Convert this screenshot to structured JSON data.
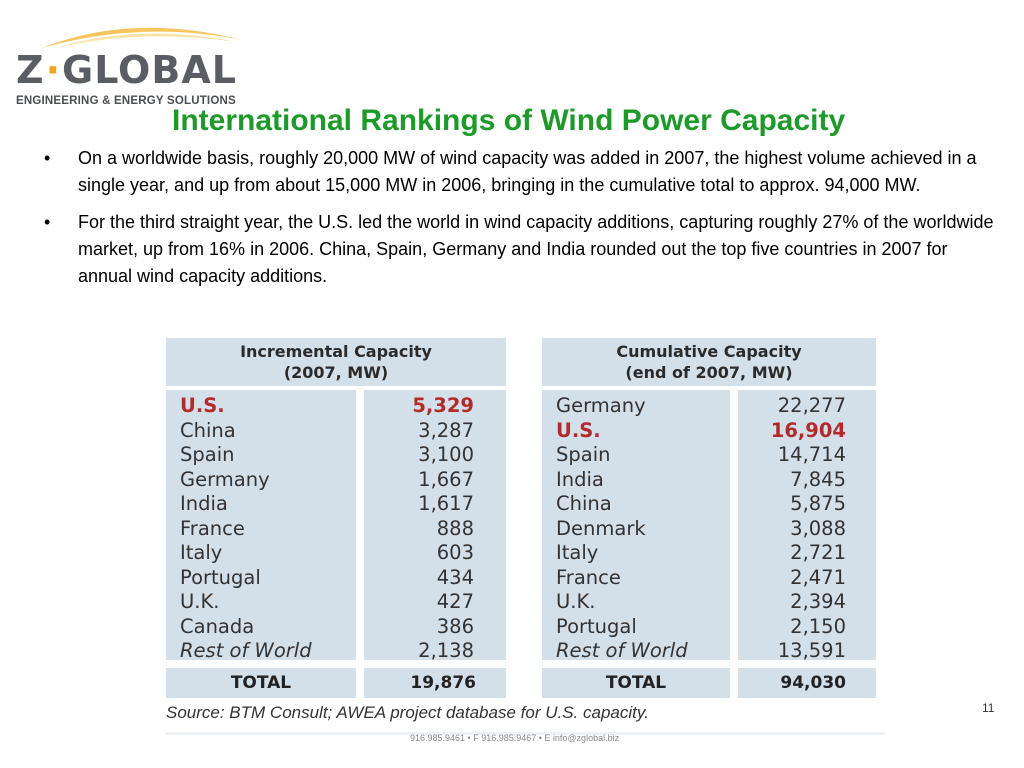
{
  "logo": {
    "brand_left": "Z",
    "brand_dot": "·",
    "brand_right": "GLOBAL",
    "tagline": "ENGINEERING & ENERGY SOLUTIONS",
    "accent_color": "#f2a31b"
  },
  "title": "International Rankings of Wind Power Capacity",
  "bullets": [
    {
      "symbol": "•",
      "text": "On a worldwide basis, roughly 20,000 MW of wind capacity was added in 2007, the highest volume achieved in a single year, and up from about 15,000 MW in 2006, bringing in the cumulative total to approx. 94,000 MW."
    },
    {
      "symbol": "•",
      "text": "For the third straight year, the U.S. led the world in wind capacity additions, capturing roughly 27% of the worldwide market, up from 16% in 2006.  China, Spain, Germany and India rounded out the top five countries in 2007 for annual wind capacity additions."
    }
  ],
  "incremental": {
    "header_line1": "Incremental Capacity",
    "header_line2": "(2007, MW)",
    "rows": [
      {
        "name": "U.S.",
        "value": "5,329"
      },
      {
        "name": "China",
        "value": "3,287"
      },
      {
        "name": "Spain",
        "value": "3,100"
      },
      {
        "name": "Germany",
        "value": "1,667"
      },
      {
        "name": "India",
        "value": "1,617"
      },
      {
        "name": "France",
        "value": "888"
      },
      {
        "name": "Italy",
        "value": "603"
      },
      {
        "name": "Portugal",
        "value": "434"
      },
      {
        "name": "U.K.",
        "value": "427"
      },
      {
        "name": "Canada",
        "value": "386"
      },
      {
        "name": "Rest of World",
        "value": "2,138"
      }
    ],
    "total_label": "TOTAL",
    "total_value": "19,876"
  },
  "cumulative": {
    "header_line1": "Cumulative Capacity",
    "header_line2": "(end of 2007, MW)",
    "rows": [
      {
        "name": "Germany",
        "value": "22,277"
      },
      {
        "name": "U.S.",
        "value": "16,904"
      },
      {
        "name": "Spain",
        "value": "14,714"
      },
      {
        "name": "India",
        "value": "7,845"
      },
      {
        "name": "China",
        "value": "5,875"
      },
      {
        "name": "Denmark",
        "value": "3,088"
      },
      {
        "name": "Italy",
        "value": "2,721"
      },
      {
        "name": "France",
        "value": "2,471"
      },
      {
        "name": "U.K.",
        "value": "2,394"
      },
      {
        "name": "Portugal",
        "value": "2,150"
      },
      {
        "name": "Rest of World",
        "value": "13,591"
      }
    ],
    "total_label": "TOTAL",
    "total_value": "94,030"
  },
  "source": "Source: BTM Consult; AWEA project database for U.S. capacity.",
  "page_number": "11",
  "footer_contact": "916.985.9461 • F 916.985.9467 • E info@zglobal.biz",
  "colors": {
    "title": "#1e9a2b",
    "highlight": "#b22a2a",
    "table_fill": "#d3dfe9"
  }
}
